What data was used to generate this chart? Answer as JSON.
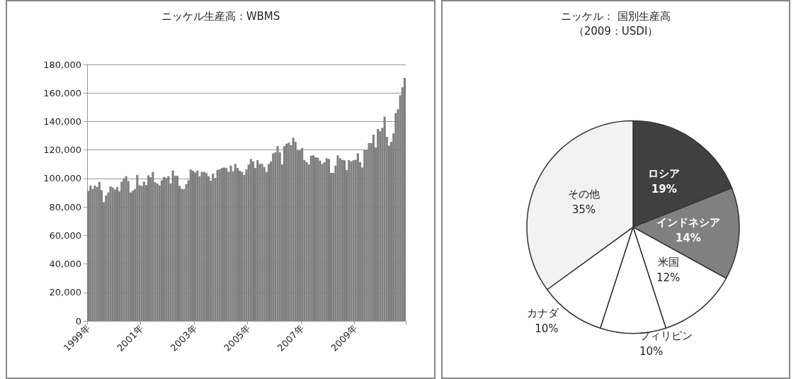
{
  "chart_data": [
    {
      "type": "bar",
      "title": "ニッケル生産高：WBMS",
      "color": "#808080",
      "categories": [
        "1999年",
        null,
        null,
        null,
        null,
        null,
        null,
        null,
        null,
        null,
        null,
        null,
        null,
        null,
        null,
        null,
        null,
        null,
        null,
        null,
        null,
        null,
        null,
        null,
        "2001年",
        null,
        null,
        null,
        null,
        null,
        null,
        null,
        null,
        null,
        null,
        null,
        null,
        null,
        null,
        null,
        null,
        null,
        null,
        null,
        null,
        null,
        null,
        null,
        "2003年",
        null,
        null,
        null,
        null,
        null,
        null,
        null,
        null,
        null,
        null,
        null,
        null,
        null,
        null,
        null,
        null,
        null,
        null,
        null,
        null,
        null,
        null,
        null,
        "2005年",
        null,
        null,
        null,
        null,
        null,
        null,
        null,
        null,
        null,
        null,
        null,
        null,
        null,
        null,
        null,
        null,
        null,
        null,
        null,
        null,
        null,
        null,
        null,
        "2007年",
        null,
        null,
        null,
        null,
        null,
        null,
        null,
        null,
        null,
        null,
        null,
        null,
        null,
        null,
        null,
        null,
        null,
        null,
        null,
        null,
        null,
        null,
        null,
        "2009年",
        null,
        null,
        null,
        null,
        null,
        null,
        null,
        null,
        null,
        null,
        null,
        null,
        null,
        null,
        null,
        null,
        null,
        null,
        null,
        null,
        null,
        null
      ],
      "values": [
        91200,
        95000,
        92600,
        95000,
        94000,
        97600,
        91700,
        83300,
        88000,
        90200,
        94400,
        93600,
        92200,
        94000,
        91000,
        97700,
        100000,
        101600,
        98200,
        90200,
        91400,
        92600,
        102500,
        95300,
        94800,
        97700,
        95300,
        102200,
        100800,
        104600,
        97400,
        96500,
        95100,
        98700,
        101100,
        100400,
        101600,
        96500,
        105600,
        101800,
        101800,
        94800,
        92600,
        92600,
        96000,
        98700,
        106300,
        105400,
        104200,
        105600,
        101600,
        104700,
        104600,
        103900,
        101600,
        98400,
        103400,
        100300,
        105900,
        106400,
        107300,
        107700,
        107300,
        104700,
        109000,
        105100,
        110200,
        107300,
        105400,
        104600,
        102500,
        106300,
        109800,
        113700,
        111900,
        107300,
        112800,
        110200,
        110200,
        108000,
        104600,
        110200,
        111900,
        117600,
        118300,
        122700,
        118300,
        109800,
        122700,
        124400,
        125100,
        123400,
        128500,
        125700,
        119700,
        119700,
        121400,
        112800,
        111400,
        109800,
        115900,
        116200,
        114900,
        114500,
        112500,
        110200,
        111400,
        114200,
        113700,
        103900,
        103900,
        109000,
        116200,
        114200,
        113100,
        112800,
        105900,
        112800,
        111900,
        112800,
        113100,
        117600,
        111400,
        107700,
        120000,
        120000,
        124800,
        124800,
        130800,
        121700,
        134800,
        133100,
        135500,
        143400,
        129100,
        123100,
        125700,
        131700,
        145900,
        148600,
        158400,
        164000,
        170500
      ],
      "ylim": [
        0,
        180000
      ],
      "yticks": [
        {
          "value": 0,
          "label": "0"
        },
        {
          "value": 20000,
          "label": "20,000"
        },
        {
          "value": 40000,
          "label": "40,000"
        },
        {
          "value": 60000,
          "label": "60,000"
        },
        {
          "value": 80000,
          "label": "80,000"
        },
        {
          "value": 100000,
          "label": "100,000"
        },
        {
          "value": 120000,
          "label": "120,000"
        },
        {
          "value": 140000,
          "label": "140,000"
        },
        {
          "value": 160000,
          "label": "160,000"
        },
        {
          "value": 180000,
          "label": "180,000"
        }
      ],
      "grid": "y",
      "legend": false
    },
    {
      "type": "pie",
      "title": "ニッケル： 国別生産高",
      "subtitle": "（2009：USDI）",
      "categories": [
        "ロシア",
        "インドネシア",
        "米国",
        "フィリピン",
        "カナダ",
        "その他"
      ],
      "values": [
        19,
        14,
        12,
        10,
        10,
        35
      ],
      "value_labels": [
        "19%",
        "14%",
        "12%",
        "10%",
        "10%",
        "35%"
      ],
      "colors": [
        "#404040",
        "#808080",
        "#ffffff",
        "#ffffff",
        "#ffffff",
        "#f2f2f2"
      ],
      "legend": false
    }
  ]
}
